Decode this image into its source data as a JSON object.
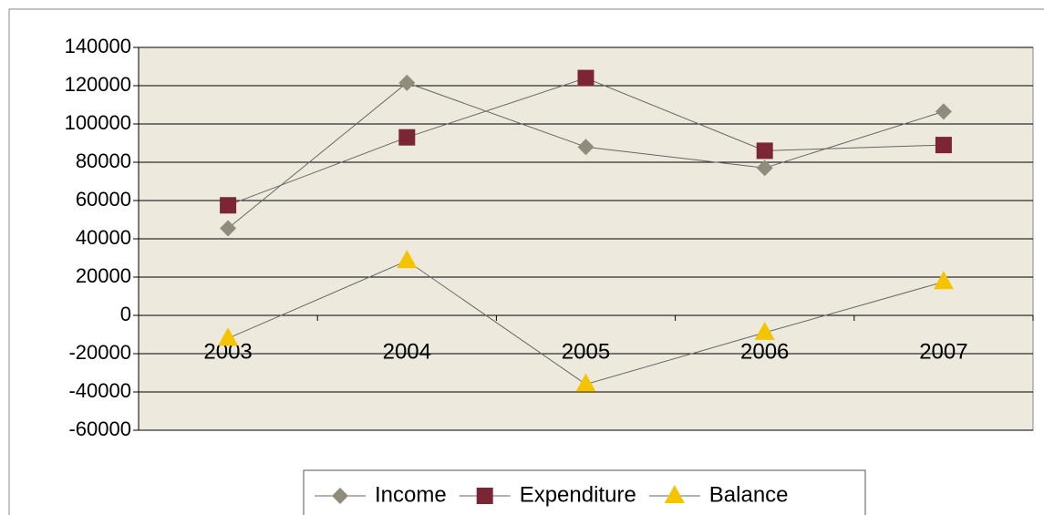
{
  "chart_data": {
    "type": "line",
    "categories": [
      "2003",
      "2004",
      "2005",
      "2006",
      "2007"
    ],
    "series": [
      {
        "name": "Income",
        "color": "#8f8c7c",
        "marker": "diamond",
        "values": [
          45500,
          121500,
          88000,
          77000,
          106500
        ]
      },
      {
        "name": "Expenditure",
        "color": "#7b2535",
        "marker": "square",
        "values": [
          57500,
          93000,
          124000,
          86000,
          89000
        ]
      },
      {
        "name": "Balance",
        "color": "#f5c400",
        "marker": "triangle",
        "values": [
          -12000,
          28500,
          -36000,
          -9000,
          17500
        ]
      }
    ],
    "ylim": [
      -60000,
      140000
    ],
    "yticks": [
      -60000,
      -40000,
      -20000,
      0,
      20000,
      40000,
      60000,
      80000,
      100000,
      120000,
      140000
    ],
    "grid": true,
    "legend": "bottom"
  }
}
